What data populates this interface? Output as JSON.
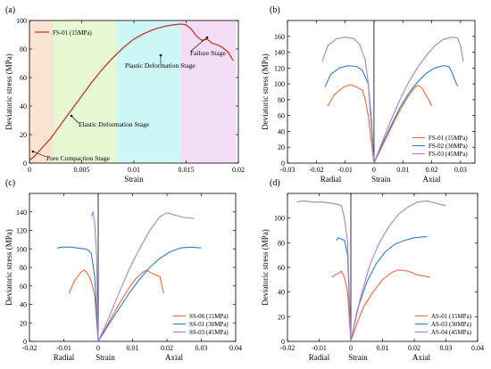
{
  "chart_data": [
    {
      "panel": "(a)",
      "type": "line",
      "xlabel": "Strain",
      "ylabel": "Deviatoric stress (MPa)",
      "xlim": [
        0,
        0.02
      ],
      "ylim": [
        0,
        100
      ],
      "xticks": [
        "0",
        "0.005",
        "0.01",
        "0.015",
        "0.02"
      ],
      "yticks": [
        "0",
        "20",
        "40",
        "60",
        "80",
        "100"
      ],
      "stages": [
        {
          "name": "Pore Compaction Stage",
          "x0": 0,
          "x1": 0.0023,
          "color": "#fbe3d3"
        },
        {
          "name": "Elastic Deformation Stage",
          "x0": 0.0023,
          "x1": 0.0084,
          "color": "#e6f7d3"
        },
        {
          "name": "Plastic Deformation Stage",
          "x0": 0.0084,
          "x1": 0.0145,
          "color": "#cdf7f7"
        },
        {
          "name": "Failure Stage",
          "x0": 0.0145,
          "x1": 0.0198,
          "color": "#f3ddf5"
        }
      ],
      "series": [
        {
          "name": "FS-01 (15MPa)",
          "color": "#c0392b",
          "x": [
            0,
            0.0005,
            0.001,
            0.0015,
            0.002,
            0.0025,
            0.003,
            0.0035,
            0.004,
            0.005,
            0.006,
            0.007,
            0.008,
            0.009,
            0.01,
            0.011,
            0.012,
            0.013,
            0.0138,
            0.0145,
            0.015,
            0.0155,
            0.016,
            0.0165,
            0.017,
            0.0175,
            0.018,
            0.0185,
            0.019,
            0.0195
          ],
          "y": [
            2,
            5,
            9,
            13,
            17,
            22,
            27,
            32,
            37,
            47,
            57,
            66,
            74,
            81,
            87,
            91,
            94,
            96,
            97,
            97.5,
            97,
            94,
            89,
            86,
            87,
            84,
            83,
            81,
            78,
            72
          ]
        }
      ],
      "legend_position": "top-left"
    },
    {
      "panel": "(b)",
      "type": "line",
      "xlabel_left": "Radial",
      "xlabel_mid": "Strain",
      "xlabel_right": "Axial",
      "ylabel": "Deviatoric stress (MPa)",
      "xlim": [
        -0.03,
        0.035
      ],
      "ylim": [
        0,
        180
      ],
      "xticks": [
        "-0.03",
        "-0.02",
        "-0.01",
        "0",
        "0.01",
        "0.02",
        "0.03"
      ],
      "yticks": [
        "0",
        "20",
        "40",
        "60",
        "80",
        "100",
        "120",
        "140",
        "160"
      ],
      "series": [
        {
          "name": "FS-01 (15MPa)",
          "color": "#e8693f",
          "radial_x": [
            -0.016,
            -0.014,
            -0.012,
            -0.01,
            -0.008,
            -0.006,
            -0.004,
            -0.003,
            -0.002,
            -0.001,
            0
          ],
          "radial_y": [
            72,
            85,
            92,
            97,
            99,
            96,
            92,
            80,
            60,
            30,
            0
          ],
          "axial_x": [
            0,
            0.002,
            0.004,
            0.006,
            0.008,
            0.01,
            0.012,
            0.014,
            0.015,
            0.016,
            0.017,
            0.018,
            0.019,
            0.02
          ],
          "axial_y": [
            0,
            15,
            30,
            45,
            60,
            73,
            85,
            95,
            98,
            97,
            93,
            86,
            80,
            72
          ]
        },
        {
          "name": "FS-02 (30MPa)",
          "color": "#2f7ec2",
          "radial_x": [
            -0.017,
            -0.015,
            -0.012,
            -0.009,
            -0.006,
            -0.004,
            -0.002,
            -0.001,
            0
          ],
          "radial_y": [
            96,
            112,
            120,
            123,
            122,
            117,
            100,
            60,
            0
          ],
          "axial_x": [
            0,
            0.003,
            0.006,
            0.009,
            0.012,
            0.015,
            0.018,
            0.021,
            0.024,
            0.026,
            0.027,
            0.028,
            0.029
          ],
          "axial_y": [
            0,
            25,
            48,
            70,
            88,
            102,
            113,
            120,
            123,
            122,
            115,
            105,
            97
          ]
        },
        {
          "name": "FS-03 (45MPa)",
          "color": "#b07fc9",
          "radial_x": [
            -0.018,
            -0.016,
            -0.013,
            -0.01,
            -0.007,
            -0.005,
            -0.003,
            -0.002,
            -0.001,
            0
          ],
          "radial_y": [
            128,
            148,
            157,
            159,
            157,
            150,
            130,
            100,
            50,
            0
          ],
          "axial_x": [
            0,
            0.003,
            0.006,
            0.009,
            0.012,
            0.015,
            0.018,
            0.021,
            0.024,
            0.027,
            0.029,
            0.03,
            0.031
          ],
          "axial_y": [
            0,
            28,
            55,
            80,
            102,
            120,
            135,
            148,
            156,
            159,
            158,
            148,
            128
          ]
        }
      ],
      "legend_position": "bottom-right"
    },
    {
      "panel": "(c)",
      "type": "line",
      "xlabel_left": "Radial",
      "xlabel_mid": "Strain",
      "xlabel_right": "Axial",
      "ylabel": "Deviatoric stress (MPa)",
      "xlim": [
        -0.02,
        0.04
      ],
      "ylim": [
        0,
        160
      ],
      "xticks": [
        "-0.02",
        "-0.01",
        "0",
        "0.01",
        "0.02",
        "0.03",
        "0.04"
      ],
      "yticks": [
        "0",
        "20",
        "40",
        "60",
        "80",
        "100",
        "120",
        "140"
      ],
      "series": [
        {
          "name": "SS-06 (15MPa)",
          "color": "#e8693f",
          "radial_x": [
            -0.0085,
            -0.007,
            -0.005,
            -0.004,
            -0.003,
            -0.002,
            -0.001,
            0
          ],
          "radial_y": [
            52,
            65,
            75,
            77,
            73,
            65,
            50,
            0
          ],
          "axial_x": [
            0,
            0.003,
            0.006,
            0.009,
            0.011,
            0.013,
            0.014,
            0.016,
            0.018,
            0.019
          ],
          "axial_y": [
            0,
            20,
            40,
            58,
            68,
            75,
            77,
            73,
            70,
            52
          ]
        },
        {
          "name": "SS-01 (30MPa)",
          "color": "#2f7ec2",
          "radial_x": [
            -0.012,
            -0.01,
            -0.008,
            -0.006,
            -0.004,
            -0.003,
            -0.002,
            -0.001,
            0
          ],
          "radial_y": [
            101,
            102,
            102,
            101,
            100,
            99,
            95,
            70,
            0
          ],
          "axial_x": [
            0,
            0.003,
            0.006,
            0.009,
            0.012,
            0.015,
            0.018,
            0.021,
            0.024,
            0.027,
            0.03
          ],
          "axial_y": [
            0,
            18,
            35,
            52,
            67,
            80,
            90,
            97,
            101,
            102,
            101
          ]
        },
        {
          "name": "SS-03 (45MPa)",
          "color": "#b07fc9",
          "radial_x": [
            -0.002,
            -0.0015,
            -0.001,
            -0.0005,
            0
          ],
          "radial_y": [
            135,
            140,
            128,
            95,
            0
          ],
          "axial_x": [
            0,
            0.003,
            0.006,
            0.009,
            0.012,
            0.015,
            0.018,
            0.02,
            0.022,
            0.025,
            0.028
          ],
          "axial_y": [
            0,
            25,
            52,
            78,
            100,
            120,
            135,
            139,
            137,
            134,
            133
          ]
        }
      ],
      "legend_position": "bottom-right"
    },
    {
      "panel": "(d)",
      "type": "line",
      "xlabel_left": "Radial",
      "xlabel_mid": "Strain",
      "xlabel_right": "Axial",
      "ylabel": "Deviatoric stress (MPa)",
      "xlim": [
        -0.02,
        0.04
      ],
      "ylim": [
        0,
        120
      ],
      "xticks": [
        "-0.02",
        "-0.01",
        "0",
        "0.01",
        "0.02",
        "0.03",
        "0.04"
      ],
      "yticks": [
        "0",
        "20",
        "40",
        "60",
        "80",
        "100"
      ],
      "series": [
        {
          "name": "AS-01 (15MPa)",
          "color": "#e8693f",
          "radial_x": [
            -0.006,
            -0.005,
            -0.004,
            -0.003,
            -0.002,
            -0.001,
            0
          ],
          "radial_y": [
            52,
            54,
            55,
            57,
            52,
            40,
            0
          ],
          "axial_x": [
            0,
            0.002,
            0.004,
            0.007,
            0.01,
            0.013,
            0.015,
            0.018,
            0.021,
            0.025
          ],
          "axial_y": [
            0,
            15,
            28,
            40,
            50,
            56,
            58,
            57,
            54,
            52
          ]
        },
        {
          "name": "AS-03 (30MPa)",
          "color": "#2f7ec2",
          "radial_x": [
            -0.0045,
            -0.004,
            -0.003,
            -0.002,
            -0.001,
            0
          ],
          "radial_y": [
            82,
            84,
            83,
            82,
            70,
            0
          ],
          "axial_x": [
            0,
            0.002,
            0.005,
            0.008,
            0.011,
            0.014,
            0.017,
            0.02,
            0.024
          ],
          "axial_y": [
            0,
            25,
            48,
            63,
            73,
            79,
            82,
            84,
            85
          ]
        },
        {
          "name": "AS-04 (45MPa)",
          "color": "#b07fc9",
          "radial_x": [
            -0.017,
            -0.015,
            -0.012,
            -0.009,
            -0.006,
            -0.004,
            -0.003,
            -0.002,
            -0.001,
            0
          ],
          "radial_y": [
            113,
            114,
            113,
            113,
            112,
            111,
            110,
            100,
            80,
            0
          ],
          "axial_x": [
            0,
            0.003,
            0.006,
            0.009,
            0.012,
            0.015,
            0.018,
            0.021,
            0.024,
            0.027,
            0.03
          ],
          "axial_y": [
            0,
            35,
            62,
            80,
            93,
            103,
            109,
            113,
            114,
            112,
            110
          ]
        }
      ],
      "legend_position": "bottom-right"
    }
  ]
}
